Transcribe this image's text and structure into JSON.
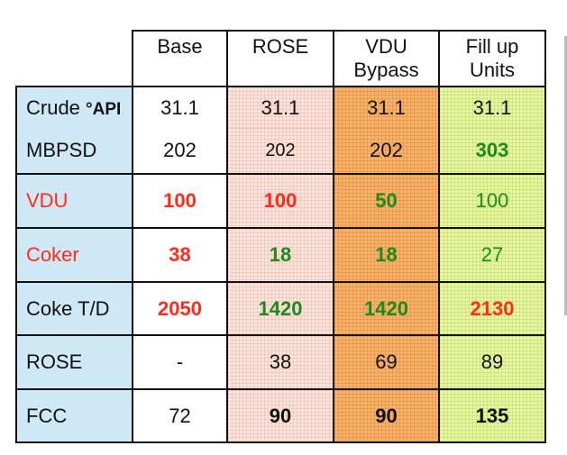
{
  "headers": [
    "Base",
    "ROSE",
    "VDU Bypass",
    "Fill up Units"
  ],
  "header_lines": {
    "vdu": [
      "VDU",
      "Bypass"
    ],
    "fill": [
      "Fill up",
      "Units"
    ]
  },
  "rows": {
    "crude": {
      "label": "Crude",
      "unit": "°API",
      "values": [
        "31.1",
        "31.1",
        "31.1",
        "31.1"
      ]
    },
    "mbpsd": {
      "label": "MBPSD",
      "values": [
        "202",
        "202",
        "202",
        "303"
      ]
    },
    "vdu": {
      "label": "VDU",
      "values": [
        "100",
        "100",
        "50",
        "100"
      ]
    },
    "coker": {
      "label": "Coker",
      "values": [
        "38",
        "18",
        "18",
        "27"
      ]
    },
    "coke": {
      "label": "Coke T/D",
      "values": [
        "2050",
        "1420",
        "1420",
        "2130"
      ]
    },
    "rose": {
      "label": "ROSE",
      "values": [
        "-",
        "38",
        "69",
        "89"
      ]
    },
    "fcc": {
      "label": "FCC",
      "values": [
        "72",
        "90",
        "90",
        "135"
      ]
    }
  },
  "colors": {
    "label_bg": "#cfe8f6",
    "rose_bg": "#fbe3dc",
    "vdu_bypass_bg": "#f9b267",
    "fill_up_bg": "#e6f7a0",
    "red_text": "#ff2b1a",
    "green_text": "#1e8a1e"
  }
}
